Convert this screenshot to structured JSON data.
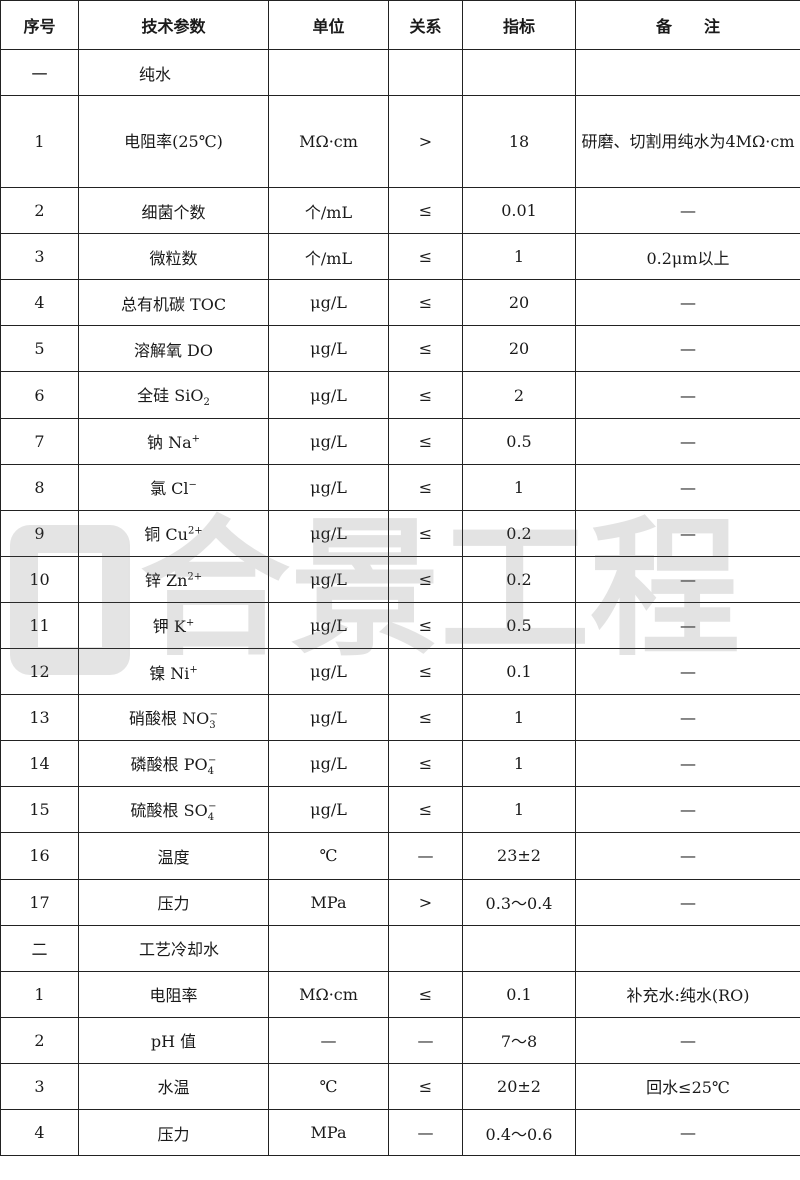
{
  "headers": [
    "序号",
    "技术参数",
    "单位",
    "关系",
    "指标",
    "备　　注"
  ],
  "rows": [
    {
      "section": true,
      "no": "一",
      "param": "纯水"
    },
    {
      "no": "1",
      "param": "电阻率(25℃)",
      "unit": "MΩ·cm",
      "rel": ">",
      "value": "18",
      "note": "研磨、切割用纯水为4MΩ·cm",
      "tall": true
    },
    {
      "no": "2",
      "param": "细菌个数",
      "unit": "个/mL",
      "rel": "≤",
      "value": "0.01",
      "note": "—"
    },
    {
      "no": "3",
      "param": "微粒数",
      "unit": "个/mL",
      "rel": "≤",
      "value": "1",
      "note": "0.2μm以上"
    },
    {
      "no": "4",
      "param": "总有机碳 TOC",
      "unit": "μg/L",
      "rel": "≤",
      "value": "20",
      "note": "—"
    },
    {
      "no": "5",
      "param": "溶解氧 DO",
      "unit": "μg/L",
      "rel": "≤",
      "value": "20",
      "note": "—"
    },
    {
      "no": "6",
      "param": "全硅 SiO",
      "sub": "2",
      "unit": "μg/L",
      "rel": "≤",
      "value": "2",
      "note": "—"
    },
    {
      "no": "7",
      "param": "钠 Na",
      "sup": "+",
      "unit": "μg/L",
      "rel": "≤",
      "value": "0.5",
      "note": "—"
    },
    {
      "no": "8",
      "param": "氯 Cl",
      "sup": "−",
      "unit": "μg/L",
      "rel": "≤",
      "value": "1",
      "note": "—"
    },
    {
      "no": "9",
      "param": "铜 Cu",
      "sup": "2+",
      "unit": "μg/L",
      "rel": "≤",
      "value": "0.2",
      "note": "—"
    },
    {
      "no": "10",
      "param": "锌 Zn",
      "sup": "2+",
      "unit": "μg/L",
      "rel": "≤",
      "value": "0.2",
      "note": "—"
    },
    {
      "no": "11",
      "param": "钾 K",
      "sup": "+",
      "unit": "μg/L",
      "rel": "≤",
      "value": "0.5",
      "note": "—"
    },
    {
      "no": "12",
      "param": "镍 Ni",
      "sup": "+",
      "unit": "μg/L",
      "rel": "≤",
      "value": "0.1",
      "note": "—"
    },
    {
      "no": "13",
      "param": "硝酸根 NO",
      "sub": "3",
      "sup": "−",
      "unit": "μg/L",
      "rel": "≤",
      "value": "1",
      "note": "—"
    },
    {
      "no": "14",
      "param": "磷酸根 PO",
      "sub": "4",
      "sup": "−",
      "unit": "μg/L",
      "rel": "≤",
      "value": "1",
      "note": "—"
    },
    {
      "no": "15",
      "param": "硫酸根 SO",
      "sub": "4",
      "sup": "−",
      "unit": "μg/L",
      "rel": "≤",
      "value": "1",
      "note": "—"
    },
    {
      "no": "16",
      "param": "温度",
      "unit": "℃",
      "rel": "—",
      "value": "23±2",
      "note": "—"
    },
    {
      "no": "17",
      "param": "压力",
      "unit": "MPa",
      "rel": ">",
      "value": "0.3～0.4",
      "note": "—"
    },
    {
      "section": true,
      "no": "二",
      "param": "工艺冷却水"
    },
    {
      "no": "1",
      "param": "电阻率",
      "unit": "MΩ·cm",
      "rel": "≤",
      "value": "0.1",
      "note": "补充水:纯水(RO)"
    },
    {
      "no": "2",
      "param": "pH 值",
      "unit": "—",
      "rel": "—",
      "value": "7～8",
      "note": "—"
    },
    {
      "no": "3",
      "param": "水温",
      "unit": "℃",
      "rel": "≤",
      "value": "20±2",
      "note": "回水≤25℃"
    },
    {
      "no": "4",
      "param": "压力",
      "unit": "MPa",
      "rel": "—",
      "value": "0.4～0.6",
      "note": "—"
    }
  ],
  "watermark": "合景工程"
}
